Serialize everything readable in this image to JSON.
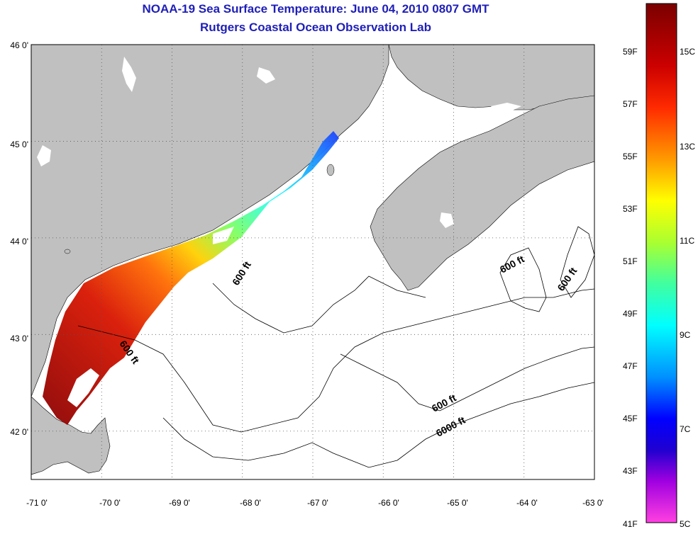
{
  "title": "NOAA-19 Sea Surface Temperature:  June 04, 2010 0807 GMT",
  "subtitle": "Rutgers Coastal Ocean Observation Lab",
  "axes": {
    "lat_labels": [
      "46 0'",
      "45 0'",
      "44 0'",
      "43 0'",
      "42 0'"
    ],
    "lon_labels": [
      "-71 0'",
      "-70 0'",
      "-69 0'",
      "-68 0'",
      "-67 0'",
      "-66 0'",
      "-65 0'",
      "-64 0'",
      "-63 0'"
    ],
    "lat_range": [
      41.5,
      46.0
    ],
    "lon_range": [
      -71.0,
      -63.0
    ],
    "grid": "dotted"
  },
  "contours": {
    "depth_labels": [
      "600 ft",
      "600 ft",
      "600 ft",
      "600 ft",
      "600 ft",
      "6000 ft"
    ]
  },
  "colorbar": {
    "fahrenheit_labels": [
      "59F",
      "57F",
      "55F",
      "53F",
      "51F",
      "49F",
      "47F",
      "45F",
      "43F",
      "41F"
    ],
    "celsius_labels": [
      "15C",
      "13C",
      "11C",
      "9C",
      "7C",
      "5C"
    ],
    "range_celsius": [
      5,
      16
    ]
  },
  "colors": {
    "land": "#c0c0c0",
    "water": "#ffffff",
    "title": "#1f1fb8",
    "warm": "#8b0000",
    "cold": "#ff00ff"
  }
}
